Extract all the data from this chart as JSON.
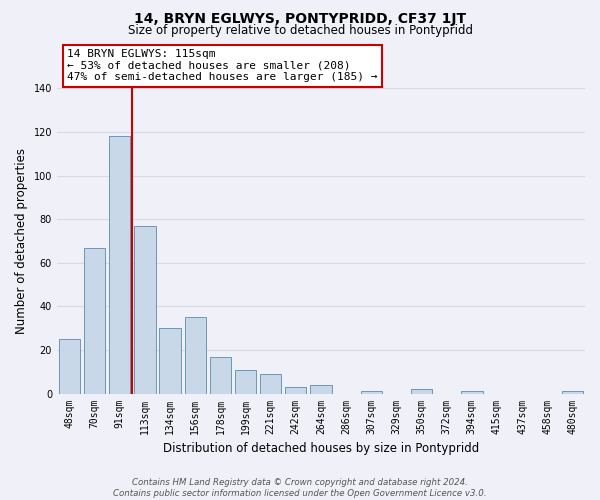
{
  "title": "14, BRYN EGLWYS, PONTYPRIDD, CF37 1JT",
  "subtitle": "Size of property relative to detached houses in Pontypridd",
  "xlabel": "Distribution of detached houses by size in Pontypridd",
  "ylabel": "Number of detached properties",
  "bar_labels": [
    "48sqm",
    "70sqm",
    "91sqm",
    "113sqm",
    "134sqm",
    "156sqm",
    "178sqm",
    "199sqm",
    "221sqm",
    "242sqm",
    "264sqm",
    "286sqm",
    "307sqm",
    "329sqm",
    "350sqm",
    "372sqm",
    "394sqm",
    "415sqm",
    "437sqm",
    "458sqm",
    "480sqm"
  ],
  "bar_values": [
    25,
    67,
    118,
    77,
    30,
    35,
    17,
    11,
    9,
    3,
    4,
    0,
    1,
    0,
    2,
    0,
    1,
    0,
    0,
    0,
    1
  ],
  "bar_color": "#c8d8e8",
  "bar_edge_color": "#5a8ab0",
  "highlight_line_after_index": 2,
  "highlight_line_color": "#cc0000",
  "ylim": [
    0,
    140
  ],
  "yticks": [
    0,
    20,
    40,
    60,
    80,
    100,
    120,
    140
  ],
  "annotation_line1": "14 BRYN EGLWYS: 115sqm",
  "annotation_line2": "← 53% of detached houses are smaller (208)",
  "annotation_line3": "47% of semi-detached houses are larger (185) →",
  "footer_text": "Contains HM Land Registry data © Crown copyright and database right 2024.\nContains public sector information licensed under the Open Government Licence v3.0.",
  "background_color": "#f0f0f8",
  "grid_color": "#d8d8e8",
  "title_fontsize": 10,
  "subtitle_fontsize": 8.5,
  "axis_label_fontsize": 8.5,
  "tick_fontsize": 7,
  "annotation_fontsize": 8
}
